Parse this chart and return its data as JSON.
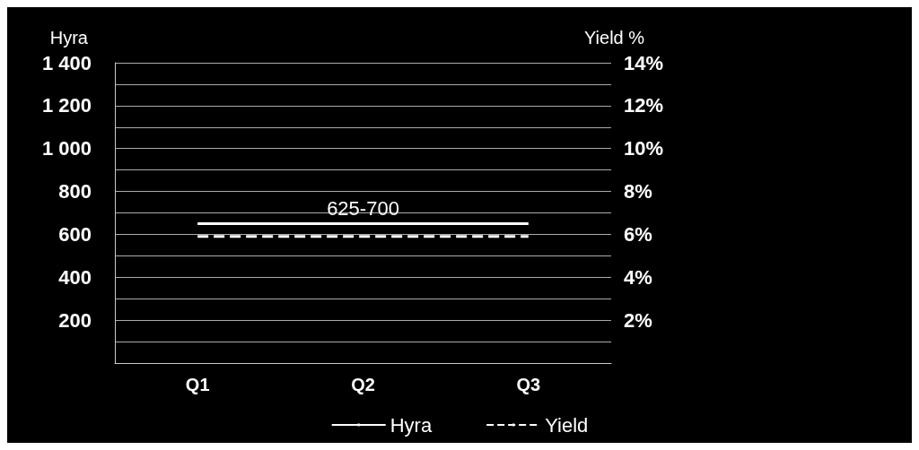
{
  "chart_data": {
    "type": "line",
    "categories": [
      "Q1",
      "Q2",
      "Q3"
    ],
    "ylabel": "Hyra",
    "y2label": "Yield %",
    "series": [
      {
        "name": "Hyra",
        "color": "#ffffff",
        "values": [
          650,
          650,
          650
        ],
        "line_style": "solid"
      },
      {
        "name": "Yield",
        "color": "#ffffff",
        "values": [
          5.9,
          5.9,
          5.9
        ],
        "axis": "y2",
        "line_style": "dashed"
      }
    ],
    "ylim": [
      0,
      1400
    ],
    "yticks": [
      {
        "value": 0,
        "label": null
      },
      {
        "value": 100,
        "label": null
      },
      {
        "value": 200,
        "label": "200"
      },
      {
        "value": 300,
        "label": null
      },
      {
        "value": 400,
        "label": "400"
      },
      {
        "value": 500,
        "label": null
      },
      {
        "value": 600,
        "label": "600"
      },
      {
        "value": 700,
        "label": null
      },
      {
        "value": 800,
        "label": "800"
      },
      {
        "value": 900,
        "label": null
      },
      {
        "value": 1000,
        "label": "1 000"
      },
      {
        "value": 1100,
        "label": null
      },
      {
        "value": 1200,
        "label": "1 200"
      },
      {
        "value": 1300,
        "label": null
      },
      {
        "value": 1400,
        "label": "1 400"
      }
    ],
    "y2lim": [
      0,
      14
    ],
    "y2ticks": [
      {
        "value": 0,
        "label": null
      },
      {
        "value": 2,
        "label": "2%"
      },
      {
        "value": 4,
        "label": "4%"
      },
      {
        "value": 6,
        "label": "6%"
      },
      {
        "value": 8,
        "label": "8%"
      },
      {
        "value": 10,
        "label": "10%"
      },
      {
        "value": 12,
        "label": "12%"
      },
      {
        "value": 14,
        "label": "14%"
      }
    ],
    "annotations": [
      {
        "text": "625-700",
        "x": "Q2",
        "y": 650
      }
    ],
    "grid": "y",
    "legend": "bottom",
    "marker": "none"
  }
}
